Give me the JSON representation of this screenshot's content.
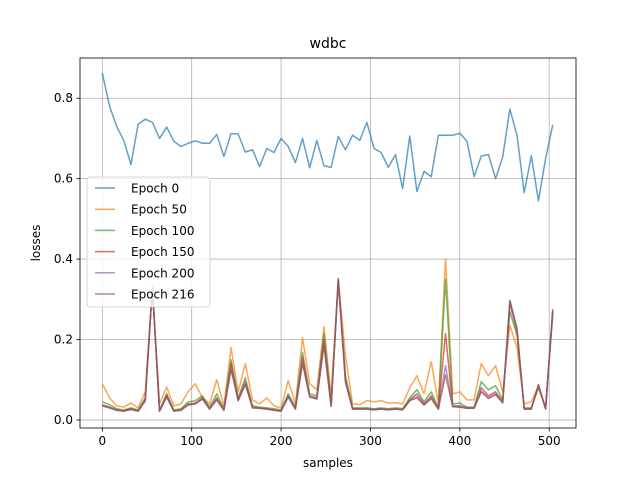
{
  "chart_data": {
    "type": "line",
    "title": "wdbc",
    "xlabel": "samples",
    "ylabel": "losses",
    "xlim": [
      -25,
      530
    ],
    "ylim": [
      -0.02,
      0.9
    ],
    "xticks": [
      0,
      100,
      200,
      300,
      400,
      500
    ],
    "yticks": [
      0.0,
      0.2,
      0.4,
      0.6,
      0.8
    ],
    "grid": true,
    "legend_position": "center-left",
    "x": [
      0,
      8,
      16,
      24,
      32,
      40,
      48,
      56,
      64,
      72,
      80,
      88,
      96,
      104,
      112,
      120,
      128,
      136,
      144,
      152,
      160,
      168,
      176,
      184,
      192,
      200,
      208,
      216,
      224,
      232,
      240,
      248,
      256,
      264,
      272,
      280,
      288,
      296,
      304,
      312,
      320,
      328,
      336,
      344,
      352,
      360,
      368,
      376,
      384,
      392,
      400,
      408,
      416,
      424,
      432,
      440,
      448,
      456,
      464,
      472,
      480,
      488,
      496,
      504
    ],
    "series": [
      {
        "name": "Epoch 0",
        "color": "#1f77b4",
        "values": [
          0.862,
          0.781,
          0.73,
          0.695,
          0.635,
          0.735,
          0.748,
          0.74,
          0.7,
          0.728,
          0.693,
          0.68,
          0.688,
          0.694,
          0.688,
          0.688,
          0.71,
          0.655,
          0.712,
          0.711,
          0.666,
          0.672,
          0.63,
          0.675,
          0.665,
          0.7,
          0.68,
          0.64,
          0.7,
          0.627,
          0.695,
          0.632,
          0.628,
          0.705,
          0.672,
          0.708,
          0.695,
          0.74,
          0.675,
          0.665,
          0.628,
          0.66,
          0.575,
          0.706,
          0.568,
          0.618,
          0.605,
          0.708,
          0.708,
          0.708,
          0.713,
          0.693,
          0.605,
          0.656,
          0.66,
          0.6,
          0.654,
          0.773,
          0.708,
          0.565,
          0.657,
          0.545,
          0.65,
          0.734
        ]
      },
      {
        "name": "Epoch 50",
        "color": "#ff7f0e",
        "values": [
          0.09,
          0.055,
          0.035,
          0.032,
          0.042,
          0.03,
          0.07,
          0.33,
          0.04,
          0.082,
          0.035,
          0.04,
          0.07,
          0.09,
          0.055,
          0.04,
          0.1,
          0.035,
          0.18,
          0.07,
          0.14,
          0.05,
          0.04,
          0.055,
          0.035,
          0.03,
          0.098,
          0.04,
          0.205,
          0.09,
          0.075,
          0.232,
          0.06,
          0.35,
          0.16,
          0.04,
          0.038,
          0.048,
          0.045,
          0.048,
          0.042,
          0.043,
          0.04,
          0.08,
          0.11,
          0.065,
          0.145,
          0.04,
          0.4,
          0.065,
          0.07,
          0.05,
          0.05,
          0.14,
          0.11,
          0.135,
          0.07,
          0.235,
          0.18,
          0.04,
          0.045,
          0.085,
          0.03,
          0.275
        ]
      },
      {
        "name": "Epoch 100",
        "color": "#2ca02c",
        "values": [
          0.045,
          0.038,
          0.028,
          0.025,
          0.03,
          0.025,
          0.055,
          0.33,
          0.025,
          0.065,
          0.025,
          0.028,
          0.045,
          0.048,
          0.06,
          0.032,
          0.065,
          0.028,
          0.15,
          0.055,
          0.105,
          0.035,
          0.032,
          0.03,
          0.028,
          0.025,
          0.065,
          0.032,
          0.168,
          0.065,
          0.06,
          0.215,
          0.04,
          0.345,
          0.11,
          0.03,
          0.03,
          0.03,
          0.028,
          0.03,
          0.028,
          0.03,
          0.028,
          0.055,
          0.075,
          0.045,
          0.07,
          0.03,
          0.35,
          0.04,
          0.042,
          0.032,
          0.032,
          0.095,
          0.075,
          0.085,
          0.05,
          0.27,
          0.21,
          0.03,
          0.03,
          0.08,
          0.03,
          0.262
        ]
      },
      {
        "name": "Epoch 150",
        "color": "#d62728",
        "values": [
          0.038,
          0.032,
          0.025,
          0.022,
          0.028,
          0.022,
          0.05,
          0.33,
          0.022,
          0.062,
          0.022,
          0.025,
          0.04,
          0.042,
          0.055,
          0.028,
          0.055,
          0.025,
          0.14,
          0.05,
          0.095,
          0.032,
          0.03,
          0.028,
          0.025,
          0.022,
          0.06,
          0.028,
          0.155,
          0.06,
          0.055,
          0.2,
          0.035,
          0.348,
          0.1,
          0.028,
          0.028,
          0.028,
          0.026,
          0.028,
          0.026,
          0.028,
          0.026,
          0.05,
          0.065,
          0.04,
          0.06,
          0.028,
          0.215,
          0.035,
          0.035,
          0.03,
          0.03,
          0.08,
          0.06,
          0.07,
          0.045,
          0.29,
          0.22,
          0.028,
          0.028,
          0.085,
          0.028,
          0.27
        ]
      },
      {
        "name": "Epoch 200",
        "color": "#9467bd",
        "values": [
          0.035,
          0.03,
          0.024,
          0.022,
          0.026,
          0.022,
          0.048,
          0.33,
          0.022,
          0.058,
          0.022,
          0.024,
          0.038,
          0.04,
          0.052,
          0.027,
          0.05,
          0.024,
          0.13,
          0.048,
          0.09,
          0.03,
          0.029,
          0.027,
          0.024,
          0.022,
          0.058,
          0.027,
          0.145,
          0.058,
          0.052,
          0.19,
          0.034,
          0.345,
          0.095,
          0.027,
          0.027,
          0.027,
          0.025,
          0.027,
          0.025,
          0.027,
          0.025,
          0.048,
          0.058,
          0.038,
          0.055,
          0.027,
          0.135,
          0.033,
          0.032,
          0.029,
          0.029,
          0.072,
          0.055,
          0.065,
          0.043,
          0.295,
          0.225,
          0.027,
          0.027,
          0.088,
          0.027,
          0.272
        ]
      },
      {
        "name": "Epoch 216",
        "color": "#8c564b",
        "values": [
          0.035,
          0.03,
          0.024,
          0.022,
          0.026,
          0.022,
          0.047,
          0.33,
          0.022,
          0.057,
          0.022,
          0.024,
          0.037,
          0.04,
          0.052,
          0.027,
          0.05,
          0.024,
          0.125,
          0.048,
          0.088,
          0.03,
          0.029,
          0.027,
          0.024,
          0.022,
          0.057,
          0.027,
          0.14,
          0.057,
          0.052,
          0.185,
          0.034,
          0.352,
          0.095,
          0.027,
          0.027,
          0.027,
          0.025,
          0.027,
          0.025,
          0.027,
          0.025,
          0.048,
          0.055,
          0.037,
          0.053,
          0.027,
          0.112,
          0.033,
          0.032,
          0.029,
          0.029,
          0.07,
          0.053,
          0.063,
          0.042,
          0.298,
          0.228,
          0.027,
          0.027,
          0.088,
          0.027,
          0.275
        ]
      }
    ]
  }
}
